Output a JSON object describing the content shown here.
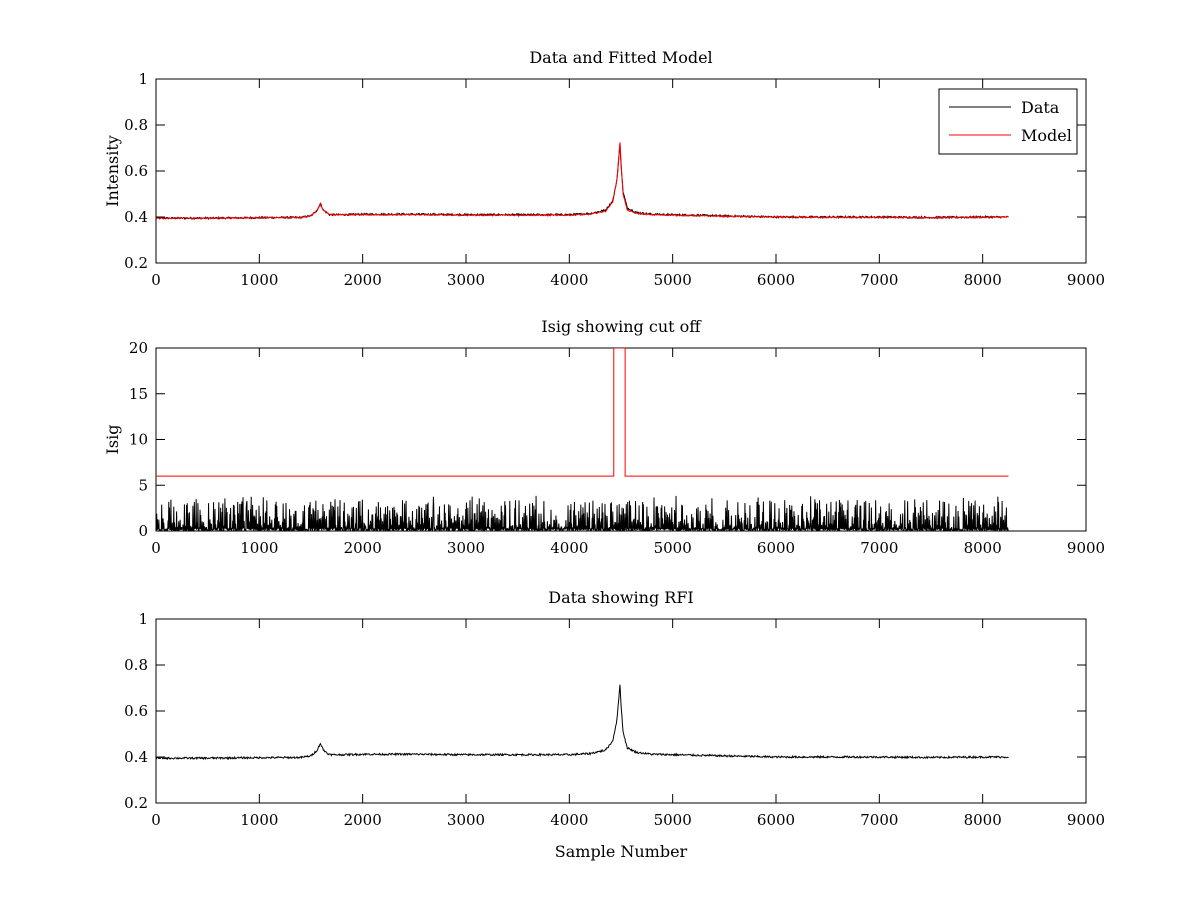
{
  "chart_data": [
    {
      "type": "line",
      "title": "Data and Fitted Model",
      "xlabel": "",
      "ylabel": "Intensity",
      "xlim": [
        0,
        9000
      ],
      "ylim": [
        0.2,
        1
      ],
      "xticks": [
        0,
        1000,
        2000,
        3000,
        4000,
        5000,
        6000,
        7000,
        8000,
        9000
      ],
      "yticks": [
        0.2,
        0.4,
        0.6,
        0.8,
        1
      ],
      "grid": false,
      "legend": "top-right",
      "legend_entries": [
        "Data",
        "Model"
      ],
      "series": [
        {
          "name": "Data",
          "color": "#000000",
          "x": [
            0,
            500,
            1000,
            1400,
            1500,
            1560,
            1590,
            1620,
            1680,
            1800,
            2000,
            2500,
            3000,
            3500,
            4000,
            4200,
            4350,
            4420,
            4460,
            4480,
            4490,
            4500,
            4520,
            4560,
            4650,
            4800,
            5000,
            5500,
            6000,
            6500,
            7000,
            7500,
            8000,
            8250
          ],
          "y": [
            0.395,
            0.395,
            0.397,
            0.398,
            0.405,
            0.43,
            0.46,
            0.43,
            0.41,
            0.41,
            0.412,
            0.412,
            0.41,
            0.41,
            0.41,
            0.415,
            0.43,
            0.47,
            0.56,
            0.66,
            0.72,
            0.63,
            0.51,
            0.44,
            0.42,
            0.412,
            0.41,
            0.405,
            0.4,
            0.4,
            0.4,
            0.398,
            0.4,
            0.4
          ]
        },
        {
          "name": "Model",
          "color": "#ff0000",
          "x": [
            0,
            500,
            1000,
            1400,
            1500,
            1560,
            1590,
            1620,
            1680,
            1800,
            2000,
            2500,
            3000,
            3500,
            4000,
            4200,
            4350,
            4420,
            4460,
            4480,
            4490,
            4500,
            4520,
            4560,
            4650,
            4800,
            5000,
            5500,
            6000,
            6500,
            7000,
            7500,
            8000,
            8250
          ],
          "y": [
            0.395,
            0.395,
            0.397,
            0.398,
            0.405,
            0.43,
            0.455,
            0.43,
            0.41,
            0.41,
            0.41,
            0.41,
            0.408,
            0.408,
            0.408,
            0.412,
            0.425,
            0.465,
            0.56,
            0.67,
            0.73,
            0.64,
            0.5,
            0.43,
            0.415,
            0.41,
            0.408,
            0.403,
            0.4,
            0.398,
            0.398,
            0.397,
            0.398,
            0.4
          ]
        }
      ]
    },
    {
      "type": "line",
      "title": "Isig showing cut off",
      "xlabel": "",
      "ylabel": "Isig",
      "xlim": [
        0,
        9000
      ],
      "ylim": [
        0,
        20
      ],
      "xticks": [
        0,
        1000,
        2000,
        3000,
        4000,
        5000,
        6000,
        7000,
        8000,
        9000
      ],
      "yticks": [
        0,
        5,
        10,
        15,
        20
      ],
      "grid": false,
      "series": [
        {
          "name": "",
          "color": "#000000",
          "style": "noise",
          "x_range": [
            0,
            8250
          ],
          "y_range": [
            0,
            3.5
          ]
        },
        {
          "name": "",
          "color": "#ff0000",
          "x": [
            0,
            4430,
            4430,
            4540,
            4540,
            8250
          ],
          "y": [
            6,
            6,
            20,
            20,
            6,
            6
          ]
        }
      ]
    },
    {
      "type": "line",
      "title": "Data showing RFI",
      "xlabel": "Sample Number",
      "ylabel": "",
      "xlim": [
        0,
        9000
      ],
      "ylim": [
        0.2,
        1
      ],
      "xticks": [
        0,
        1000,
        2000,
        3000,
        4000,
        5000,
        6000,
        7000,
        8000,
        9000
      ],
      "yticks": [
        0.2,
        0.4,
        0.6,
        0.8,
        1
      ],
      "grid": false,
      "series": [
        {
          "name": "",
          "color": "#000000",
          "x": [
            0,
            500,
            1000,
            1400,
            1500,
            1560,
            1590,
            1620,
            1680,
            1800,
            2000,
            2500,
            3000,
            3500,
            4000,
            4200,
            4350,
            4420,
            4460,
            4480,
            4490,
            4500,
            4520,
            4560,
            4650,
            4800,
            5000,
            5500,
            6000,
            6500,
            7000,
            7500,
            8000,
            8250
          ],
          "y": [
            0.395,
            0.395,
            0.397,
            0.398,
            0.405,
            0.43,
            0.46,
            0.43,
            0.41,
            0.41,
            0.412,
            0.412,
            0.41,
            0.41,
            0.41,
            0.415,
            0.43,
            0.47,
            0.56,
            0.66,
            0.72,
            0.63,
            0.51,
            0.44,
            0.42,
            0.412,
            0.41,
            0.405,
            0.4,
            0.4,
            0.4,
            0.398,
            0.4,
            0.4
          ]
        }
      ]
    }
  ]
}
